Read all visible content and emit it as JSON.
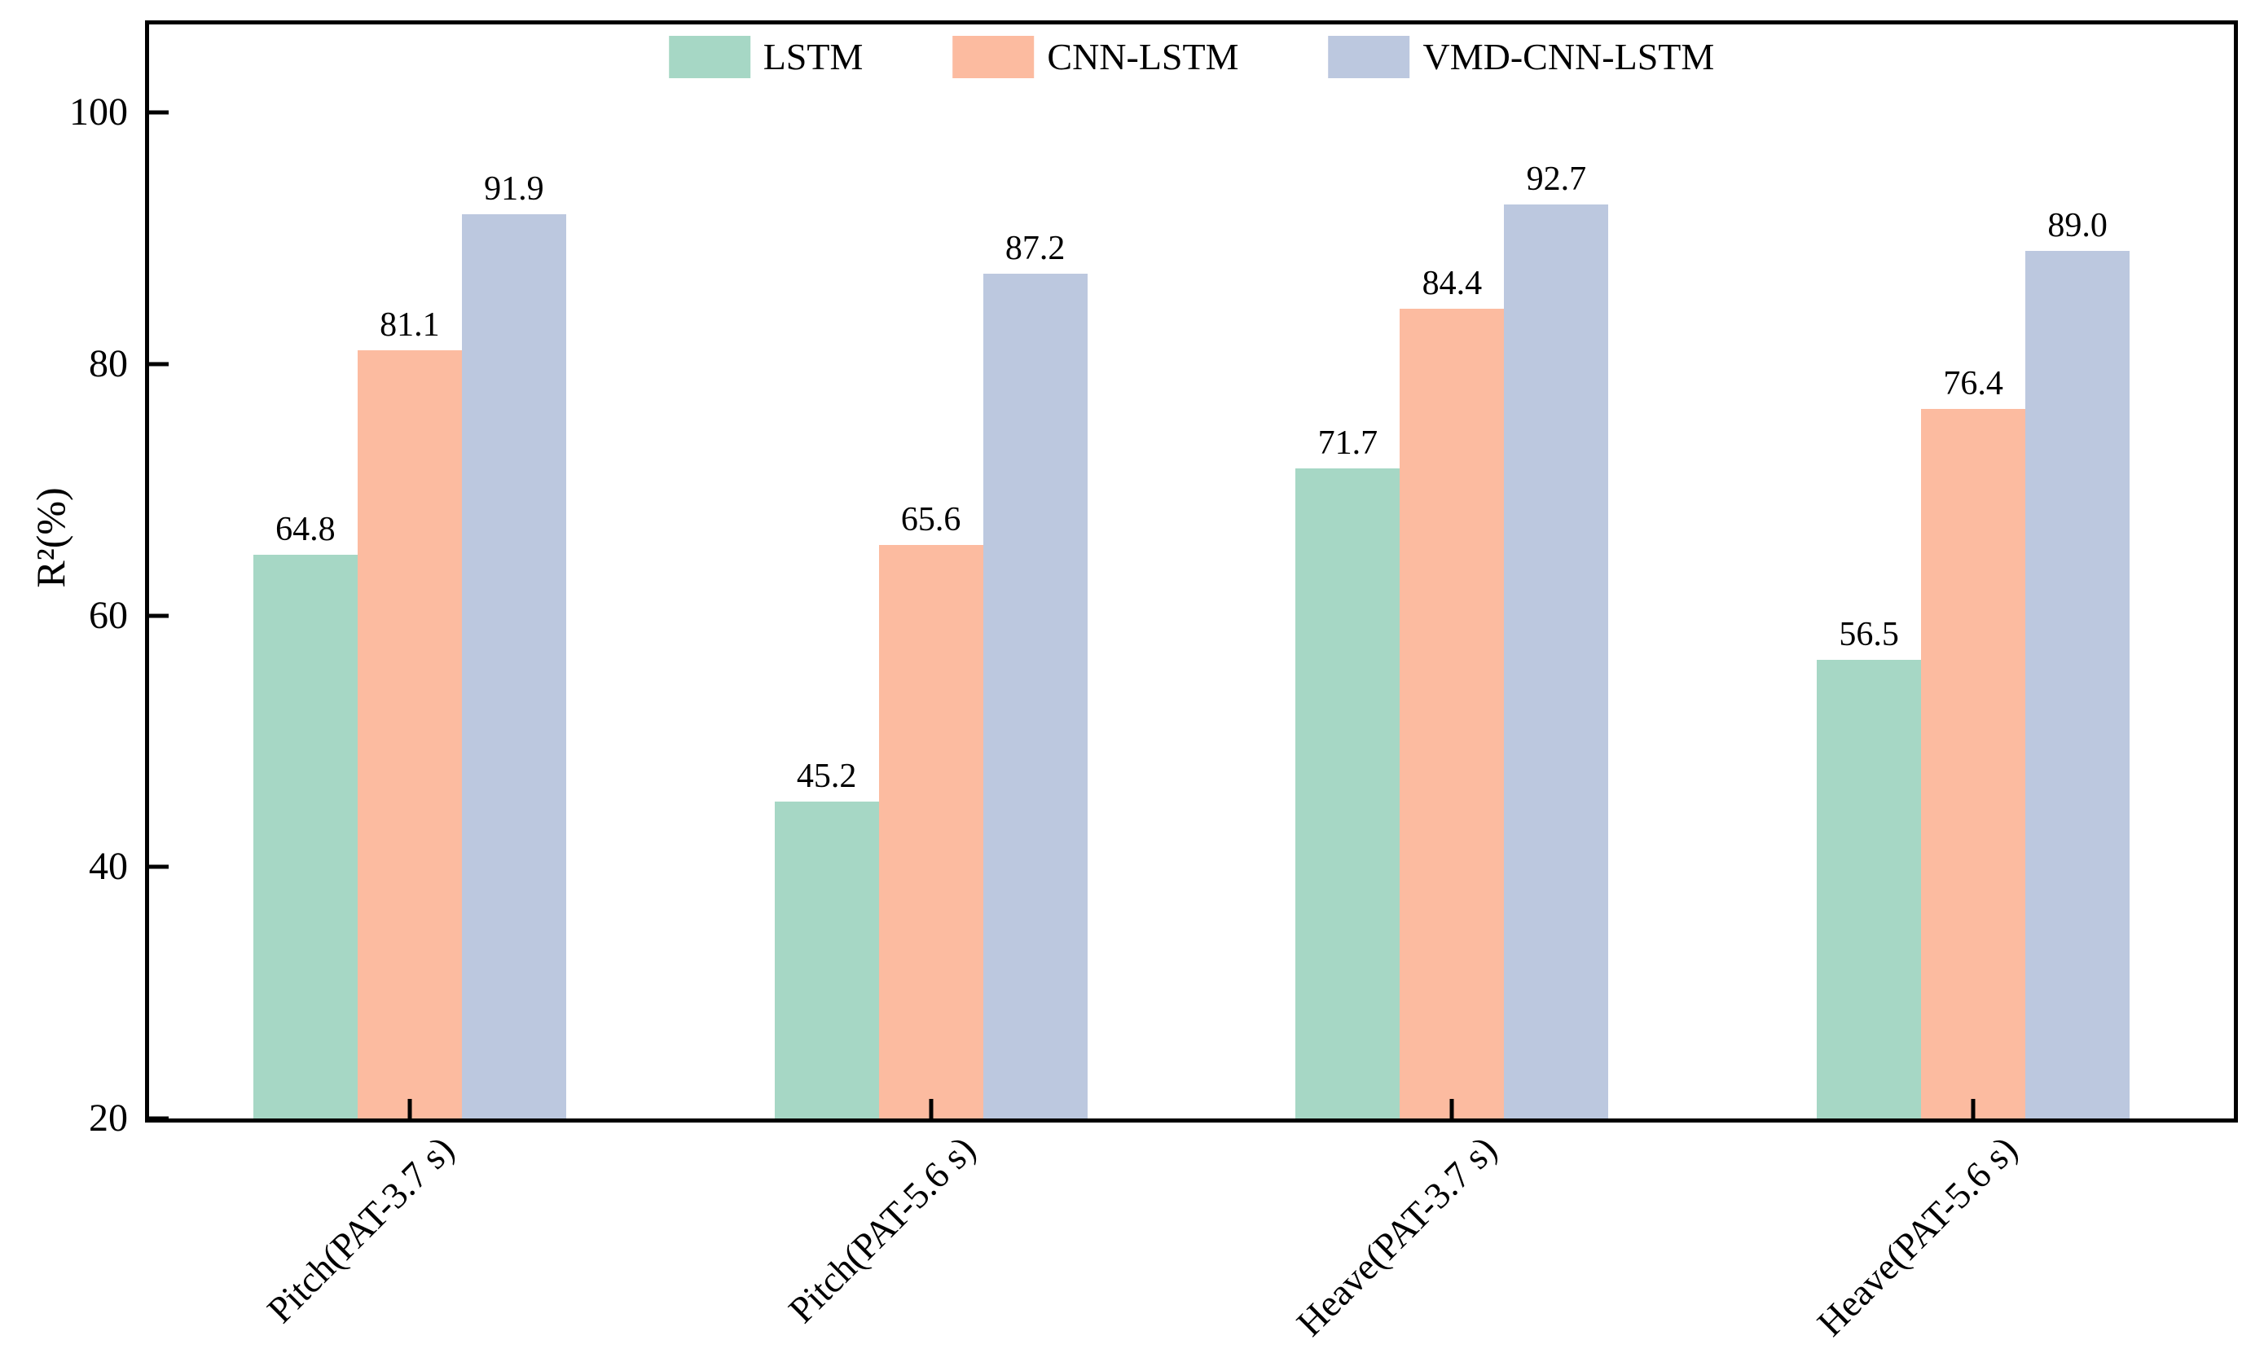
{
  "chart_data": {
    "type": "bar",
    "title": "",
    "ylabel": "R²(%)",
    "xlabel": "",
    "ylim": [
      20,
      107
    ],
    "yticks": [
      20,
      40,
      60,
      80,
      100
    ],
    "ytick_labels": [
      "20",
      "40",
      "60",
      "80",
      "100"
    ],
    "grid": false,
    "legend_position": "top center inside plot, horizontal, no frame",
    "categories": [
      "Pitch(PAT-3.7 s)",
      "Pitch(PAT-5.6 s)",
      "Heave(PAT-3.7 s)",
      "Heave(PAT-5.6 s)"
    ],
    "series": [
      {
        "name": "LSTM",
        "color": "#a6d7c5",
        "values": [
          64.8,
          45.2,
          71.7,
          56.5
        ],
        "value_labels": [
          "64.8",
          "45.2",
          "71.7",
          "56.5"
        ]
      },
      {
        "name": "CNN-LSTM",
        "color": "#fcbba0",
        "values": [
          81.1,
          65.6,
          84.4,
          76.4
        ],
        "value_labels": [
          "81.1",
          "65.6",
          "84.4",
          "76.4"
        ]
      },
      {
        "name": "VMD-CNN-LSTM",
        "color": "#bcc8df",
        "values": [
          91.9,
          87.2,
          92.7,
          89.0
        ],
        "value_labels": [
          "91.9",
          "87.2",
          "92.7",
          "89.0"
        ]
      }
    ],
    "bar_width_fraction": 0.2,
    "bar_value_labels": true,
    "axis_color": "#000000",
    "text_color": "#000000",
    "background": "#ffffff"
  }
}
